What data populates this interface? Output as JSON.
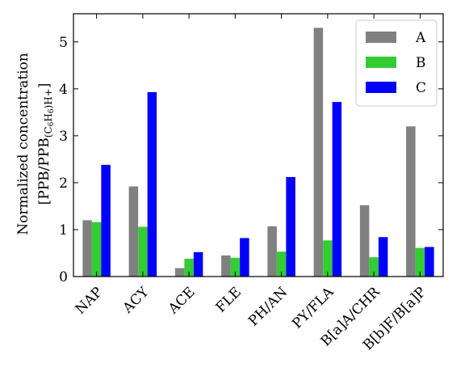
{
  "chart_data": {
    "type": "bar",
    "title": "",
    "xlabel": "",
    "ylabel_line1": "Normalized concentration",
    "ylabel_line2_main": "[PPB/PPB",
    "ylabel_line2_sub": "(C",
    "ylabel_line2_sub_6a": "6",
    "ylabel_line2_sub_h": "H",
    "ylabel_line2_sub_6b": "6",
    "ylabel_line2_sub_rest": ")H+",
    "ylabel_line2_close": "]",
    "ylim": [
      0,
      5.6
    ],
    "yticks": [
      "0",
      "1",
      "2",
      "3",
      "4",
      "5"
    ],
    "legend_position": "top-right",
    "categories": [
      "NAP",
      "ACY",
      "ACE",
      "FLE",
      "PH/AN",
      "PY/FLA",
      "B[a]A/CHR",
      "B[b]F/B[a]P"
    ],
    "series": [
      {
        "name": "A",
        "color": "#808080",
        "values": [
          1.2,
          1.92,
          0.18,
          0.45,
          1.07,
          5.3,
          1.52,
          3.2
        ]
      },
      {
        "name": "B",
        "color": "#33cc33",
        "values": [
          1.16,
          1.06,
          0.38,
          0.4,
          0.53,
          0.77,
          0.41,
          0.61
        ]
      },
      {
        "name": "C",
        "color": "#0000ff",
        "values": [
          2.38,
          3.93,
          0.52,
          0.82,
          2.12,
          3.72,
          0.84,
          0.63
        ]
      }
    ]
  }
}
